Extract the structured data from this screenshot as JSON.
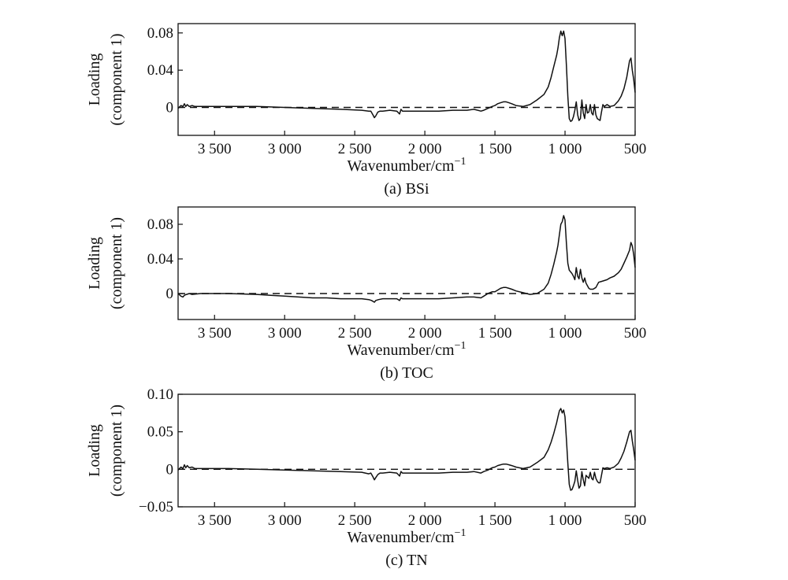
{
  "chart_data": [
    {
      "type": "line",
      "caption": "(a) BSi",
      "xlabel": "Wavenumber/cm",
      "xlabel_sup": "−1",
      "ylabel_line1": "Loading",
      "ylabel_line2": "(component 1)",
      "xlim": [
        3760,
        500
      ],
      "ylim": [
        -0.03,
        0.09
      ],
      "x_ticks": [
        3500,
        3000,
        2500,
        2000,
        1500,
        1000,
        500
      ],
      "x_tick_labels": [
        "3 500",
        "3 000",
        "2 500",
        "2 000",
        "1 500",
        "1 000",
        "500"
      ],
      "y_ticks": [
        0,
        0.04,
        0.08
      ],
      "y_tick_labels": [
        "0",
        "0.04",
        "0.08"
      ],
      "reference_line": 0,
      "series": [
        {
          "x": [
            3760,
            3740,
            3725,
            3715,
            3705,
            3695,
            3680,
            3660,
            3640,
            3600,
            3500,
            3400,
            3200,
            3000,
            2800,
            2600,
            2450,
            2400,
            2385,
            2370,
            2360,
            2350,
            2335,
            2320,
            2300,
            2250,
            2200,
            2180,
            2170,
            2160,
            2100,
            2000,
            1900,
            1800,
            1700,
            1650,
            1600,
            1580,
            1550,
            1520,
            1500,
            1480,
            1460,
            1440,
            1420,
            1400,
            1380,
            1350,
            1300,
            1250,
            1200,
            1150,
            1120,
            1100,
            1080,
            1060,
            1050,
            1040,
            1030,
            1020,
            1010,
            1000,
            990,
            980,
            970,
            960,
            950,
            940,
            930,
            920,
            910,
            900,
            890,
            880,
            870,
            860,
            850,
            840,
            830,
            820,
            810,
            800,
            790,
            780,
            770,
            760,
            750,
            740,
            730,
            720,
            700,
            680,
            650,
            620,
            600,
            580,
            560,
            540,
            530,
            520,
            510,
            500
          ],
          "y": [
            -0.001,
            0.002,
            0.001,
            0.004,
            0.001,
            0.003,
            0.001,
            0.002,
            0.001,
            0.001,
            0.001,
            0.001,
            0.001,
            0.0,
            -0.001,
            -0.002,
            -0.003,
            -0.004,
            -0.004,
            -0.008,
            -0.011,
            -0.009,
            -0.005,
            -0.004,
            -0.004,
            -0.003,
            -0.004,
            -0.007,
            -0.002,
            -0.004,
            -0.004,
            -0.004,
            -0.004,
            -0.003,
            -0.003,
            -0.002,
            -0.004,
            -0.003,
            -0.001,
            0.001,
            0.002,
            0.004,
            0.005,
            0.006,
            0.006,
            0.005,
            0.004,
            0.002,
            0.001,
            0.003,
            0.008,
            0.014,
            0.022,
            0.032,
            0.044,
            0.056,
            0.064,
            0.075,
            0.082,
            0.077,
            0.082,
            0.074,
            0.045,
            0.012,
            -0.012,
            -0.015,
            -0.014,
            -0.01,
            -0.003,
            0.006,
            -0.008,
            -0.014,
            -0.012,
            0.008,
            -0.006,
            -0.012,
            0.003,
            -0.006,
            -0.005,
            0.003,
            -0.006,
            -0.008,
            0.003,
            -0.008,
            -0.012,
            -0.013,
            -0.014,
            -0.005,
            0.003,
            0.001,
            0.003,
            0.001,
            0.002,
            0.007,
            0.012,
            0.02,
            0.032,
            0.05,
            0.053,
            0.04,
            0.03,
            0.016
          ]
        }
      ]
    },
    {
      "type": "line",
      "caption": "(b) TOC",
      "xlabel": "Wavenumber/cm",
      "xlabel_sup": "−1",
      "ylabel_line1": "Loading",
      "ylabel_line2": "(component 1)",
      "xlim": [
        3760,
        500
      ],
      "ylim": [
        -0.03,
        0.1
      ],
      "x_ticks": [
        3500,
        3000,
        2500,
        2000,
        1500,
        1000,
        500
      ],
      "x_tick_labels": [
        "3 500",
        "3 000",
        "2 500",
        "2 000",
        "1 500",
        "1 000",
        "500"
      ],
      "y_ticks": [
        0,
        0.04,
        0.08
      ],
      "y_tick_labels": [
        "0",
        "0.04",
        "0.08"
      ],
      "reference_line": 0,
      "series": [
        {
          "x": [
            3760,
            3740,
            3725,
            3715,
            3700,
            3680,
            3660,
            3600,
            3500,
            3400,
            3200,
            3100,
            3000,
            2900,
            2800,
            2700,
            2600,
            2500,
            2450,
            2400,
            2380,
            2360,
            2350,
            2330,
            2300,
            2250,
            2200,
            2180,
            2170,
            2160,
            2100,
            2000,
            1900,
            1800,
            1700,
            1650,
            1600,
            1580,
            1550,
            1520,
            1500,
            1480,
            1460,
            1440,
            1420,
            1400,
            1380,
            1350,
            1300,
            1250,
            1200,
            1150,
            1120,
            1100,
            1080,
            1060,
            1050,
            1040,
            1030,
            1020,
            1010,
            1000,
            990,
            980,
            970,
            960,
            950,
            940,
            930,
            920,
            910,
            900,
            890,
            880,
            870,
            860,
            850,
            840,
            830,
            820,
            800,
            780,
            760,
            740,
            720,
            700,
            680,
            650,
            620,
            600,
            580,
            560,
            540,
            530,
            520,
            510,
            500
          ],
          "y": [
            0.0,
            -0.003,
            -0.004,
            -0.002,
            -0.001,
            0.0,
            -0.001,
            0.0,
            0.0,
            0.0,
            -0.001,
            -0.002,
            -0.003,
            -0.004,
            -0.005,
            -0.005,
            -0.006,
            -0.006,
            -0.006,
            -0.007,
            -0.008,
            -0.01,
            -0.008,
            -0.007,
            -0.006,
            -0.006,
            -0.006,
            -0.008,
            -0.005,
            -0.006,
            -0.006,
            -0.006,
            -0.006,
            -0.005,
            -0.004,
            -0.004,
            -0.005,
            -0.003,
            0.0,
            0.002,
            0.002,
            0.004,
            0.006,
            0.007,
            0.007,
            0.006,
            0.005,
            0.003,
            0.001,
            -0.001,
            0.0,
            0.005,
            0.012,
            0.022,
            0.034,
            0.048,
            0.056,
            0.068,
            0.08,
            0.083,
            0.09,
            0.085,
            0.058,
            0.035,
            0.027,
            0.025,
            0.023,
            0.02,
            0.016,
            0.03,
            0.02,
            0.017,
            0.028,
            0.018,
            0.013,
            0.018,
            0.012,
            0.009,
            0.006,
            0.005,
            0.005,
            0.007,
            0.013,
            0.014,
            0.015,
            0.016,
            0.018,
            0.02,
            0.024,
            0.028,
            0.035,
            0.042,
            0.05,
            0.059,
            0.055,
            0.045,
            0.03
          ]
        }
      ]
    },
    {
      "type": "line",
      "caption": "(c) TN",
      "xlabel": "Wavenumber/cm",
      "xlabel_sup": "−1",
      "ylabel_line1": "Loading",
      "ylabel_line2": "(component 1)",
      "xlim": [
        3760,
        500
      ],
      "ylim": [
        -0.05,
        0.1
      ],
      "x_ticks": [
        3500,
        3000,
        2500,
        2000,
        1500,
        1000,
        500
      ],
      "x_tick_labels": [
        "3 500",
        "3 000",
        "2 500",
        "2 000",
        "1 500",
        "1 000",
        "500"
      ],
      "y_ticks": [
        -0.05,
        0,
        0.05,
        0.1
      ],
      "y_tick_labels": [
        "−0.05",
        "0",
        "0.05",
        "0.10"
      ],
      "reference_line": 0,
      "series": [
        {
          "x": [
            3760,
            3740,
            3725,
            3715,
            3705,
            3695,
            3680,
            3660,
            3640,
            3600,
            3500,
            3400,
            3200,
            3000,
            2800,
            2600,
            2450,
            2400,
            2385,
            2370,
            2360,
            2350,
            2335,
            2320,
            2300,
            2250,
            2200,
            2180,
            2170,
            2160,
            2100,
            2000,
            1900,
            1800,
            1700,
            1650,
            1600,
            1580,
            1550,
            1520,
            1500,
            1480,
            1460,
            1440,
            1420,
            1400,
            1380,
            1350,
            1300,
            1250,
            1200,
            1150,
            1120,
            1100,
            1080,
            1060,
            1050,
            1040,
            1030,
            1020,
            1010,
            1000,
            990,
            980,
            970,
            960,
            950,
            940,
            930,
            920,
            910,
            900,
            890,
            880,
            870,
            860,
            850,
            840,
            830,
            820,
            810,
            800,
            790,
            780,
            770,
            760,
            750,
            740,
            730,
            720,
            700,
            680,
            650,
            620,
            600,
            580,
            560,
            540,
            530,
            520,
            510,
            500
          ],
          "y": [
            -0.001,
            0.003,
            0.001,
            0.006,
            0.002,
            0.005,
            0.002,
            0.003,
            0.001,
            0.001,
            0.001,
            0.001,
            0.0,
            -0.001,
            -0.002,
            -0.003,
            -0.004,
            -0.006,
            -0.005,
            -0.01,
            -0.014,
            -0.011,
            -0.007,
            -0.005,
            -0.005,
            -0.004,
            -0.005,
            -0.009,
            -0.003,
            -0.005,
            -0.005,
            -0.005,
            -0.005,
            -0.004,
            -0.004,
            -0.003,
            -0.005,
            -0.003,
            -0.001,
            0.002,
            0.003,
            0.005,
            0.006,
            0.007,
            0.007,
            0.006,
            0.005,
            0.003,
            0.001,
            0.003,
            0.009,
            0.016,
            0.026,
            0.036,
            0.048,
            0.062,
            0.07,
            0.078,
            0.081,
            0.075,
            0.079,
            0.07,
            0.04,
            0.008,
            -0.02,
            -0.028,
            -0.027,
            -0.022,
            -0.016,
            -0.002,
            -0.015,
            -0.025,
            -0.022,
            -0.003,
            -0.014,
            -0.022,
            -0.008,
            -0.01,
            -0.012,
            -0.004,
            -0.012,
            -0.014,
            -0.004,
            -0.012,
            -0.016,
            -0.018,
            -0.018,
            -0.008,
            0.002,
            0.001,
            0.002,
            0.001,
            0.003,
            0.008,
            0.015,
            0.024,
            0.036,
            0.05,
            0.052,
            0.038,
            0.026,
            0.012
          ]
        }
      ]
    }
  ]
}
